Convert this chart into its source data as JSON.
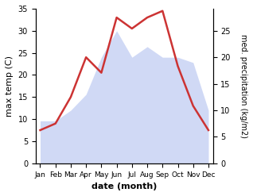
{
  "months": [
    "Jan",
    "Feb",
    "Mar",
    "Apr",
    "May",
    "Jun",
    "Jul",
    "Aug",
    "Sep",
    "Oct",
    "Nov",
    "Dec"
  ],
  "month_positions": [
    0,
    1,
    2,
    3,
    4,
    5,
    6,
    7,
    8,
    9,
    10,
    11
  ],
  "temperature": [
    7.5,
    9.0,
    15.0,
    24.0,
    20.5,
    33.0,
    30.5,
    33.0,
    34.5,
    22.0,
    13.0,
    7.5
  ],
  "precipitation": [
    8,
    8,
    10,
    13,
    20,
    25,
    20,
    22,
    20,
    20,
    19,
    10
  ],
  "temp_color": "#cc3333",
  "precip_color": "#aabbee",
  "background_color": "#ffffff",
  "ylabel_left": "max temp (C)",
  "ylabel_right": "med. precipitation (kg/m2)",
  "xlabel": "date (month)",
  "ylim_left": [
    0,
    35
  ],
  "ylim_right": [
    0,
    29.17
  ],
  "precip_scale_max": 25,
  "temp_linewidth": 1.8
}
